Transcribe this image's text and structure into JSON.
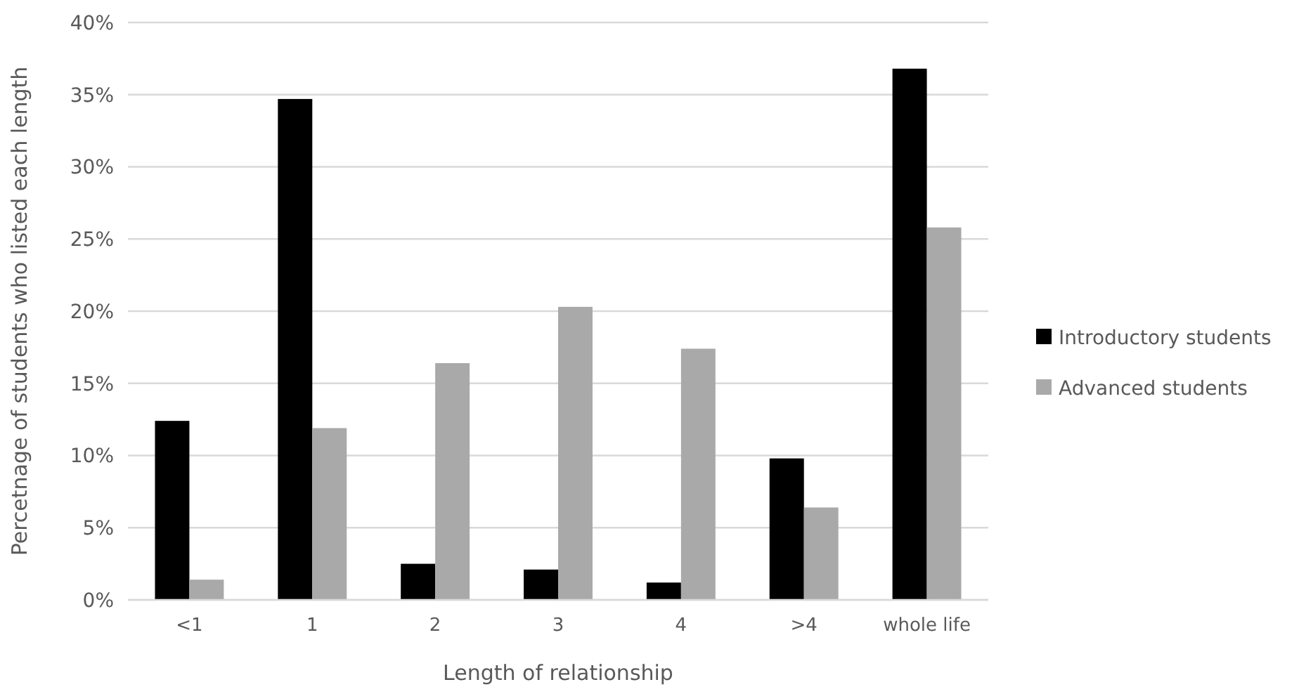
{
  "chart_data": {
    "type": "bar",
    "xlabel": "Length of relationship",
    "ylabel": "Percetnage of students who listed each length",
    "categories": [
      "<1",
      "1",
      "2",
      "3",
      "4",
      ">4",
      "whole life"
    ],
    "series": [
      {
        "name": "Introductory students",
        "color": "#000000",
        "values": [
          12.4,
          34.7,
          2.5,
          2.1,
          1.2,
          9.8,
          36.8
        ]
      },
      {
        "name": "Advanced students",
        "color": "#a9a9a9",
        "values": [
          1.4,
          11.9,
          16.4,
          20.3,
          17.4,
          6.4,
          25.8
        ]
      }
    ],
    "ylim": [
      0,
      40
    ],
    "yticks": [
      {
        "value": 0,
        "label": "0%"
      },
      {
        "value": 5,
        "label": "5%"
      },
      {
        "value": 10,
        "label": "10%"
      },
      {
        "value": 15,
        "label": "15%"
      },
      {
        "value": 20,
        "label": "20%"
      },
      {
        "value": 25,
        "label": "25%"
      },
      {
        "value": 30,
        "label": "30%"
      },
      {
        "value": 35,
        "label": "35%"
      },
      {
        "value": 40,
        "label": "40%"
      }
    ],
    "grid": "y",
    "legend": "right"
  }
}
